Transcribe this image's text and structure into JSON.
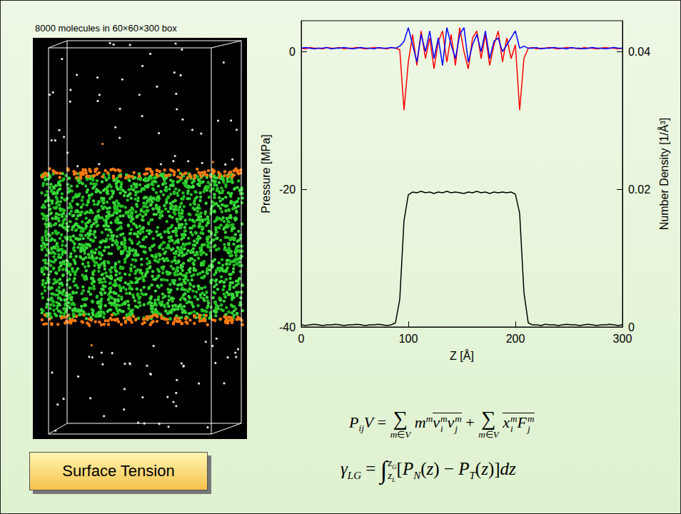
{
  "caption": "8000 molecules in 60×60×300 box",
  "chart_data": {
    "type": "line",
    "xlabel": "Z [Å]",
    "ylabel": "Pressure [MPa]",
    "y2label": "Number Density [1/Å³]",
    "xlim": [
      0,
      300
    ],
    "xticks": [
      0,
      100,
      200,
      300
    ],
    "ylim": [
      -40,
      4.5
    ],
    "yticks": [
      -40,
      -20,
      0
    ],
    "y2lim": [
      0,
      0.0445
    ],
    "y2ticks": [
      0,
      0.02,
      0.04
    ],
    "grid": false,
    "x": [
      0,
      4,
      8,
      12,
      16,
      20,
      24,
      28,
      32,
      36,
      40,
      44,
      48,
      52,
      56,
      60,
      64,
      68,
      72,
      76,
      80,
      84,
      88,
      92,
      96,
      100,
      104,
      108,
      112,
      116,
      120,
      124,
      128,
      132,
      136,
      140,
      144,
      148,
      152,
      156,
      160,
      164,
      168,
      172,
      176,
      180,
      184,
      188,
      192,
      196,
      200,
      204,
      208,
      212,
      216,
      220,
      224,
      228,
      232,
      236,
      240,
      244,
      248,
      252,
      256,
      260,
      264,
      268,
      272,
      276,
      280,
      284,
      288,
      292,
      296,
      300
    ],
    "series": [
      {
        "color": "#000000",
        "axis": "y2",
        "values": [
          0.0003,
          0.0002,
          0.0003,
          0.0004,
          0.0003,
          0.0002,
          0.0003,
          0.0003,
          0.0004,
          0.0003,
          0.0002,
          0.0003,
          0.0003,
          0.0004,
          0.0003,
          0.0002,
          0.0003,
          0.0003,
          0.0004,
          0.0003,
          0.0002,
          0.0003,
          0.0006,
          0.004,
          0.0155,
          0.0192,
          0.0196,
          0.0195,
          0.0197,
          0.0195,
          0.0196,
          0.0194,
          0.0196,
          0.0195,
          0.0197,
          0.0195,
          0.0196,
          0.0195,
          0.0194,
          0.0196,
          0.0195,
          0.0197,
          0.0195,
          0.0196,
          0.0194,
          0.0196,
          0.0195,
          0.0196,
          0.0195,
          0.0196,
          0.0193,
          0.0165,
          0.005,
          0.0006,
          0.0003,
          0.0003,
          0.0002,
          0.0004,
          0.0003,
          0.0003,
          0.0002,
          0.0003,
          0.0004,
          0.0003,
          0.0003,
          0.0002,
          0.0003,
          0.0004,
          0.0003,
          0.0002,
          0.0003,
          0.0003,
          0.0004,
          0.0003,
          0.0002,
          0.0003
        ]
      },
      {
        "color": "#ff0000",
        "values": [
          0.5,
          0.4,
          0.6,
          0.5,
          0.5,
          0.4,
          0.6,
          0.5,
          0.5,
          0.6,
          0.4,
          0.5,
          0.5,
          0.6,
          0.5,
          0.4,
          0.5,
          0.6,
          0.5,
          0.5,
          0.4,
          0.6,
          0.5,
          0.3,
          -8.5,
          -1.5,
          2.5,
          -2,
          3,
          -1,
          2,
          -2.5,
          1.5,
          3,
          -1.5,
          2.5,
          -2,
          3.5,
          0,
          -2.5,
          2,
          3,
          -1,
          2.5,
          -2,
          1,
          3,
          -1.5,
          2,
          -1,
          1,
          -8.5,
          -1,
          0.5,
          0.6,
          0.4,
          0.5,
          0.5,
          0.6,
          0.5,
          0.4,
          0.5,
          0.6,
          0.5,
          0.5,
          0.4,
          0.6,
          0.5,
          0.5,
          0.4,
          0.5,
          0.6,
          0.5,
          0.5,
          0.4,
          0.5
        ]
      },
      {
        "color": "#0000ff",
        "values": [
          0.5,
          0.6,
          0.5,
          0.4,
          0.5,
          0.5,
          0.6,
          0.4,
          0.5,
          0.5,
          0.6,
          0.5,
          0.4,
          0.5,
          0.6,
          0.5,
          0.5,
          0.4,
          0.6,
          0.5,
          0.5,
          0.6,
          0.5,
          0.8,
          1.5,
          3.5,
          1,
          -1.5,
          2.5,
          0,
          3,
          -1,
          2,
          -2,
          3.5,
          1,
          -1,
          2.5,
          3.5,
          -1.5,
          1,
          2.5,
          0,
          3,
          -1,
          1.5,
          2,
          0,
          1,
          2,
          3,
          0.5,
          0.8,
          0.5,
          0.5,
          0.6,
          0.4,
          0.5,
          0.5,
          0.6,
          0.5,
          0.5,
          0.4,
          0.6,
          0.5,
          0.5,
          0.4,
          0.5,
          0.6,
          0.5,
          0.5,
          0.4,
          0.5,
          0.6,
          0.5,
          0.5
        ]
      }
    ]
  },
  "equations": {
    "pressure_tensor": [
      {
        "t": "P"
      },
      {
        "sub": "ij"
      },
      {
        "t": "V = "
      },
      {
        "op": "∑",
        "under": "m∈V"
      },
      {
        "t": "m"
      },
      {
        "sup": "m"
      },
      {
        "over": [
          {
            "t": "v"
          },
          {
            "subsup": [
              "i",
              "m"
            ]
          },
          {
            "t": "v"
          },
          {
            "subsup": [
              "j",
              "m"
            ]
          }
        ]
      },
      {
        "t": " + "
      },
      {
        "op": "∑",
        "under": "m∈V"
      },
      {
        "over": [
          {
            "t": "x"
          },
          {
            "subsup": [
              "i",
              "m"
            ]
          },
          {
            "t": "F"
          },
          {
            "subsup": [
              "j",
              "m"
            ]
          }
        ]
      }
    ],
    "surface_tension": [
      {
        "t": "γ"
      },
      {
        "sub": "LG"
      },
      {
        "t": " = "
      },
      {
        "op": "∫",
        "upper": [
          {
            "t": "z"
          },
          {
            "sub": "G"
          }
        ],
        "lower": [
          {
            "t": "z"
          },
          {
            "sub": "L"
          }
        ]
      },
      {
        "t": "[P"
      },
      {
        "sub": "N"
      },
      {
        "t": "(z) − P"
      },
      {
        "sub": "T"
      },
      {
        "t": "(z)]dz"
      }
    ]
  },
  "label": "Surface Tension"
}
